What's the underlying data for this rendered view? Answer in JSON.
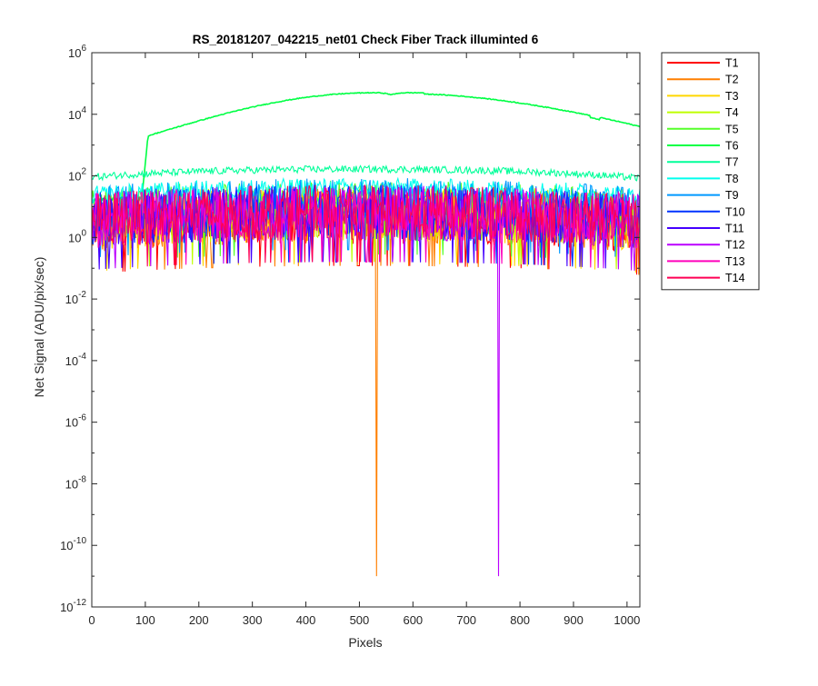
{
  "chart_data": {
    "type": "line",
    "title": "RS_20181207_042215_net01   Check Fiber     Track illuminted 6",
    "xlabel": "Pixels",
    "ylabel": "Net Signal (ADU/pix/sec)",
    "xlim": [
      0,
      1024
    ],
    "ylim": [
      1e-12,
      1000000.0
    ],
    "yscale": "log",
    "grid": false,
    "legend_position": "outside-right",
    "x_ticks": [
      0,
      100,
      200,
      300,
      400,
      500,
      600,
      700,
      800,
      900,
      1000
    ],
    "y_tick_exponents": [
      -12,
      -10,
      -8,
      -6,
      -4,
      -2,
      0,
      2,
      4,
      6
    ],
    "y_tick_base": "10",
    "series": [
      {
        "name": "T1",
        "color": "#ff0000",
        "level": 6,
        "noise": 8,
        "spikes": []
      },
      {
        "name": "T2",
        "color": "#ff7f00",
        "level": 6,
        "noise": 8,
        "spikes": [
          {
            "x": 532,
            "y": 1e-11
          }
        ]
      },
      {
        "name": "T3",
        "color": "#ffd700",
        "level": 7,
        "noise": 8,
        "spikes": []
      },
      {
        "name": "T4",
        "color": "#bfff00",
        "level": 8,
        "noise": 8,
        "spikes": []
      },
      {
        "name": "T5",
        "color": "#55ff2a",
        "level": 14,
        "noise": 6,
        "spikes": []
      },
      {
        "name": "T6",
        "color": "#00ff44",
        "level": 45000,
        "noise": 1.05,
        "spikes": []
      },
      {
        "name": "T7",
        "color": "#00ff99",
        "level": 170,
        "noise": 1.3,
        "spikes": []
      },
      {
        "name": "T8",
        "color": "#00ffee",
        "level": 45,
        "noise": 2,
        "spikes": []
      },
      {
        "name": "T9",
        "color": "#0099ff",
        "level": 20,
        "noise": 5,
        "spikes": []
      },
      {
        "name": "T10",
        "color": "#0033ff",
        "level": 8,
        "noise": 8,
        "spikes": []
      },
      {
        "name": "T11",
        "color": "#4400ff",
        "level": 8,
        "noise": 8,
        "spikes": []
      },
      {
        "name": "T12",
        "color": "#bb00ff",
        "level": 8,
        "noise": 8,
        "spikes": [
          {
            "x": 760,
            "y": 1e-11
          }
        ]
      },
      {
        "name": "T13",
        "color": "#ff00bb",
        "level": 8,
        "noise": 8,
        "spikes": []
      },
      {
        "name": "T14",
        "color": "#ff0055",
        "level": 8,
        "noise": 8,
        "spikes": []
      }
    ]
  }
}
